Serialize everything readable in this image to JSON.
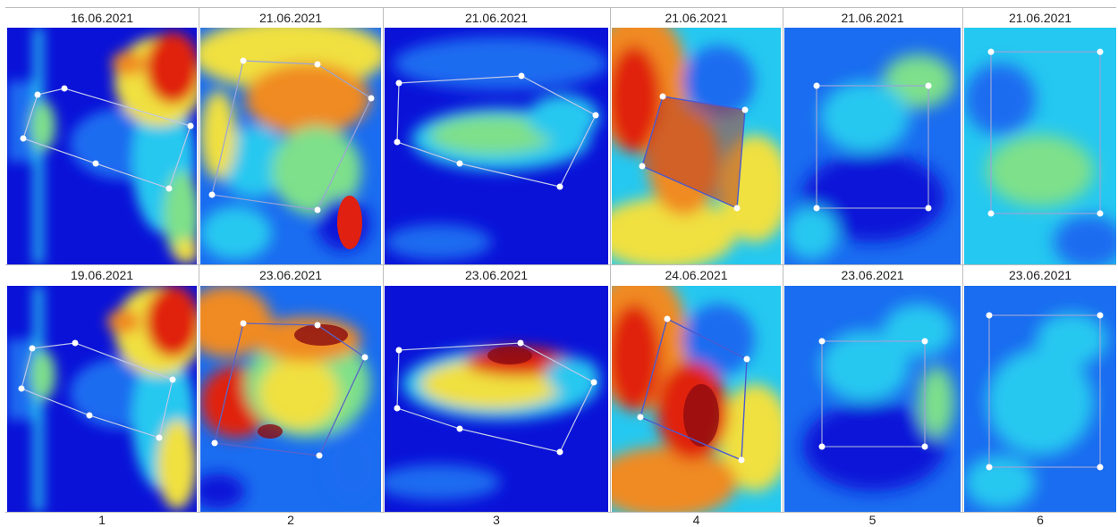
{
  "figure": {
    "columns": [
      {
        "number": "1",
        "top_date": "16.06.2021",
        "bottom_date": "19.06.2021"
      },
      {
        "number": "2",
        "top_date": "21.06.2021",
        "bottom_date": "23.06.2021"
      },
      {
        "number": "3",
        "top_date": "21.06.2021",
        "bottom_date": "23.06.2021"
      },
      {
        "number": "4",
        "top_date": "21.06.2021",
        "bottom_date": "24.06.2021"
      },
      {
        "number": "5",
        "top_date": "21.06.2021",
        "bottom_date": "23.06.2021"
      },
      {
        "number": "6",
        "top_date": "21.06.2021",
        "bottom_date": "23.06.2021"
      }
    ],
    "colormap": [
      "#0a12d8",
      "#1a6cf0",
      "#25c8f0",
      "#7ee08a",
      "#f0e040",
      "#f08a20",
      "#e02010",
      "#8a0a10"
    ]
  }
}
